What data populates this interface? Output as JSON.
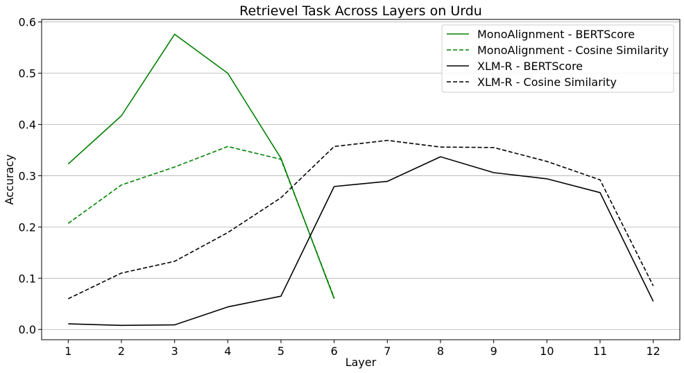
{
  "chart_data": {
    "type": "line",
    "title": "Retrievel Task Across Layers on Urdu",
    "xlabel": "Layer",
    "ylabel": "Accuracy",
    "x": [
      1,
      2,
      3,
      4,
      5,
      6,
      7,
      8,
      9,
      10,
      11,
      12
    ],
    "xlim": [
      0.5,
      12.5
    ],
    "ylim": [
      -0.02,
      0.605
    ],
    "yticks": [
      0.0,
      0.1,
      0.2,
      0.3,
      0.4,
      0.5,
      0.6
    ],
    "ytick_labels": [
      "0.0",
      "0.1",
      "0.2",
      "0.3",
      "0.4",
      "0.5",
      "0.6"
    ],
    "xtick_labels": [
      "1",
      "2",
      "3",
      "4",
      "5",
      "6",
      "7",
      "8",
      "9",
      "10",
      "11",
      "12"
    ],
    "grid": "horizontal",
    "legend_position": "top-right",
    "series": [
      {
        "name": "MonoAlignment - BERTScore",
        "color": "#008000",
        "dash": "solid",
        "x": [
          1,
          2,
          3,
          4,
          5,
          6
        ],
        "values": [
          0.323,
          0.417,
          0.576,
          0.5,
          0.334,
          0.06
        ]
      },
      {
        "name": "MonoAlignment - Cosine Similarity",
        "color": "#008000",
        "dash": "dashed",
        "x": [
          1,
          2,
          3,
          4,
          5,
          6
        ],
        "values": [
          0.207,
          0.282,
          0.317,
          0.357,
          0.332,
          0.062
        ]
      },
      {
        "name": "XLM-R - BERTScore",
        "color": "#000000",
        "dash": "solid",
        "x": [
          1,
          2,
          3,
          4,
          5,
          6,
          7,
          8,
          9,
          10,
          11,
          12
        ],
        "values": [
          0.011,
          0.008,
          0.009,
          0.044,
          0.065,
          0.279,
          0.289,
          0.337,
          0.306,
          0.294,
          0.267,
          0.055
        ]
      },
      {
        "name": "XLM-R - Cosine Similarity",
        "color": "#000000",
        "dash": "dashed",
        "x": [
          1,
          2,
          3,
          4,
          5,
          6,
          7,
          8,
          9,
          10,
          11,
          12
        ],
        "values": [
          0.06,
          0.11,
          0.133,
          0.189,
          0.257,
          0.357,
          0.369,
          0.356,
          0.355,
          0.328,
          0.292,
          0.085
        ]
      }
    ]
  }
}
